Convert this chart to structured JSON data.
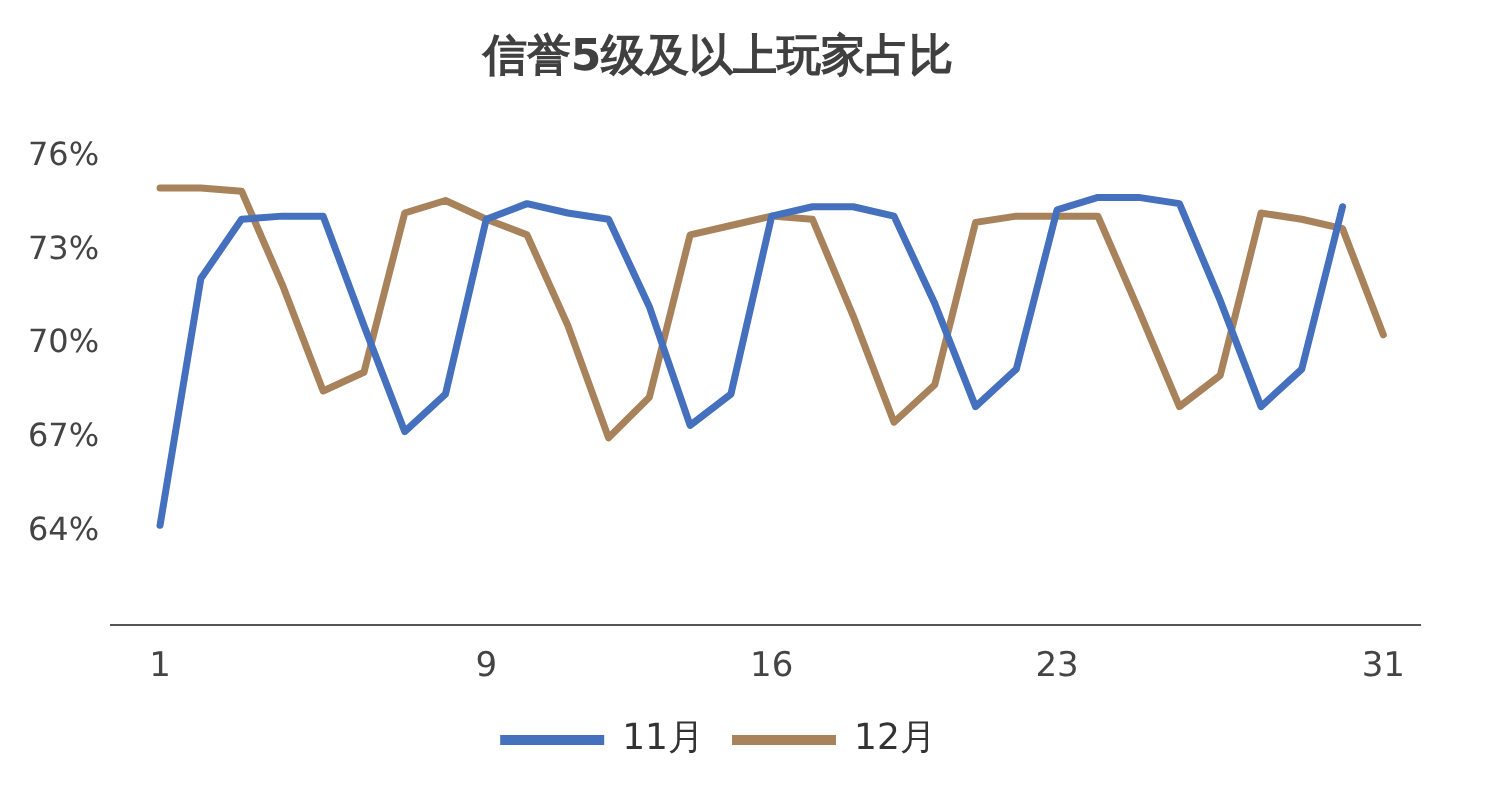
{
  "chart_data": {
    "type": "line",
    "title": "信誉5级及以上玩家占比",
    "x": [
      1,
      2,
      3,
      4,
      5,
      6,
      7,
      8,
      9,
      10,
      11,
      12,
      13,
      14,
      15,
      16,
      17,
      18,
      19,
      20,
      21,
      22,
      23,
      24,
      25,
      26,
      27,
      28,
      29,
      30,
      31
    ],
    "series": [
      {
        "name": "11月",
        "color": "#4470bd",
        "x": [
          1,
          2,
          3,
          4,
          5,
          6,
          7,
          8,
          9,
          10,
          11,
          12,
          13,
          14,
          15,
          16,
          17,
          18,
          19,
          20,
          21,
          22,
          23,
          24,
          25,
          26,
          27,
          28,
          29,
          30
        ],
        "values": [
          64.2,
          72.1,
          74.0,
          74.1,
          74.1,
          70.6,
          67.2,
          68.4,
          74.0,
          74.5,
          74.2,
          74.0,
          71.2,
          67.4,
          68.4,
          74.1,
          74.4,
          74.4,
          74.1,
          71.3,
          68.0,
          69.2,
          74.3,
          74.7,
          74.7,
          74.5,
          71.4,
          68.0,
          69.2,
          74.4
        ]
      },
      {
        "name": "12月",
        "color": "#a8825a",
        "values": [
          75.0,
          75.0,
          74.9,
          71.9,
          68.5,
          69.1,
          74.2,
          74.6,
          74.0,
          73.5,
          70.6,
          67.0,
          68.3,
          73.5,
          73.8,
          74.1,
          74.0,
          70.9,
          67.5,
          68.7,
          73.9,
          74.1,
          74.1,
          74.1,
          71.1,
          68.0,
          69.0,
          74.2,
          74.0,
          73.7,
          70.3
        ]
      }
    ],
    "xlim": [
      -0.2,
      31.9
    ],
    "xticks": [
      1,
      9,
      16,
      23,
      31
    ],
    "ylim": [
      61,
      76
    ],
    "yticks": [
      {
        "value": 64,
        "label": "64%"
      },
      {
        "value": 67,
        "label": "67%"
      },
      {
        "value": 70,
        "label": "70%"
      },
      {
        "value": 73,
        "label": "73%"
      },
      {
        "value": 76,
        "label": "76%"
      }
    ],
    "grid": false,
    "legend": "bottom",
    "marker": "none",
    "line_style": "solid"
  }
}
